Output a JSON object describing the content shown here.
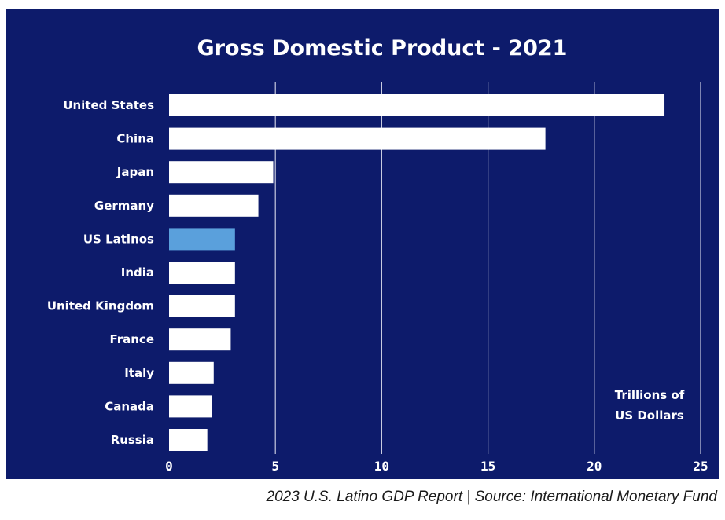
{
  "chart_data": {
    "type": "bar",
    "orientation": "horizontal",
    "title": "Gross Domestic Product - 2021",
    "categories": [
      "United States",
      "China",
      "Japan",
      "Germany",
      "US Latinos",
      "India",
      "United Kingdom",
      "France",
      "Italy",
      "Canada",
      "Russia"
    ],
    "values": [
      23.3,
      17.7,
      4.9,
      4.2,
      3.1,
      3.1,
      3.1,
      2.9,
      2.1,
      2.0,
      1.8
    ],
    "highlight_category": "US Latinos",
    "xlim": [
      0,
      25
    ],
    "xticks": [
      0,
      5,
      10,
      15,
      20,
      25
    ],
    "grid": true,
    "unit_label_lines": [
      "Trillions of",
      "US Dollars"
    ],
    "colors": {
      "background": "#0d1b6b",
      "bar": "#ffffff",
      "highlight_bar": "#5aa0dc",
      "grid": "#c8cbe0",
      "text": "#ffffff"
    }
  },
  "caption": "2023 U.S. Latino GDP Report | Source: International Monetary Fund"
}
